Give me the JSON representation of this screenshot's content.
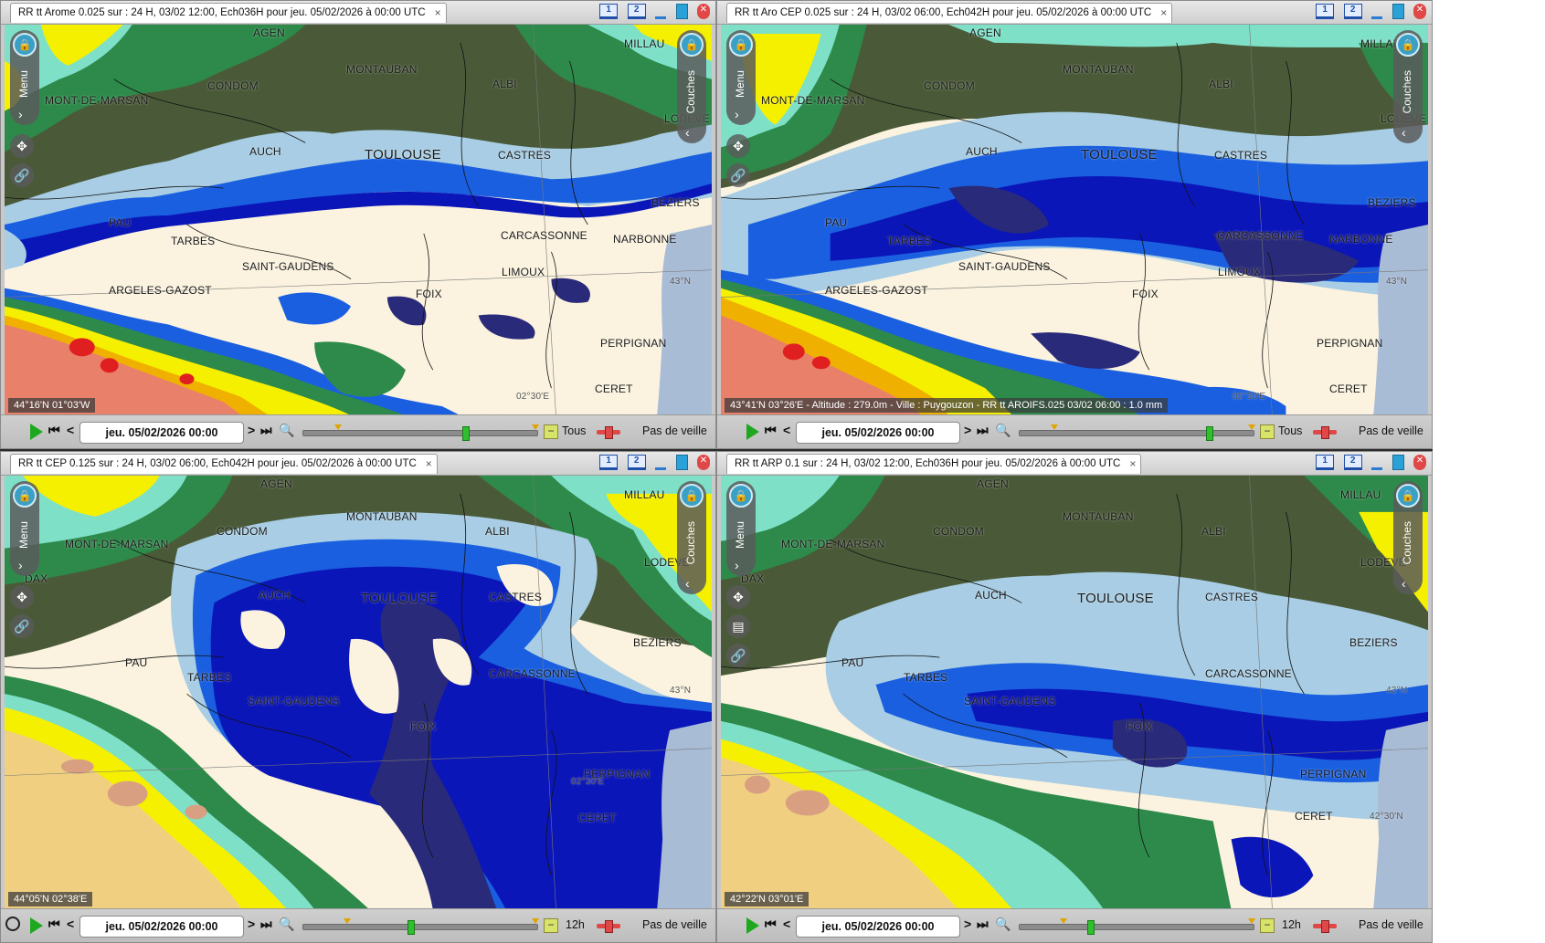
{
  "panels": [
    {
      "title": "RR tt Arome 0.025 sur : 24 H, 03/02 12:00, Ech036H pour jeu. 05/02/2026 à 00:00 UTC",
      "coord": "44°16'N 01°03'W",
      "date": "jeu. 05/02/2026 00:00",
      "step": "Tous",
      "veille": "Pas de veille",
      "menu": "Menu",
      "couches": "Couches",
      "screen1": "1",
      "screen2": "2",
      "close": "×"
    },
    {
      "title": "RR tt Aro CEP 0.025 sur : 24 H, 03/02 06:00, Ech042H pour jeu. 05/02/2026 à 00:00 UTC",
      "coord": "43°41'N 03°26'E - Altitude : 279.0m - Ville : Puygouzon - RR tt AROIFS.025 03/02 06:00 : 1.0 mm",
      "date": "jeu. 05/02/2026 00:00",
      "step": "Tous",
      "veille": "Pas de veille",
      "menu": "Menu",
      "couches": "Couches",
      "screen1": "1",
      "screen2": "2",
      "close": "×"
    },
    {
      "title": "RR tt CEP 0.125 sur : 24 H, 03/02 06:00, Ech042H pour jeu. 05/02/2026 à 00:00 UTC",
      "coord": "44°05'N 02°38'E",
      "date": "jeu. 05/02/2026 00:00",
      "step": "12h",
      "veille": "Pas de veille",
      "menu": "Menu",
      "couches": "Couches",
      "screen1": "1",
      "screen2": "2",
      "close": "×"
    },
    {
      "title": "RR tt ARP 0.1 sur : 24 H, 03/02 12:00, Ech036H pour jeu. 05/02/2026 à 00:00 UTC",
      "coord": "42°22'N 03°01'E",
      "date": "jeu. 05/02/2026 00:00",
      "step": "12h",
      "veille": "Pas de veille",
      "menu": "Menu",
      "couches": "Couches",
      "screen1": "1",
      "screen2": "2",
      "close": "×"
    }
  ],
  "cities": {
    "agen": "AGEN",
    "millau": "MILLAU",
    "montauban": "MONTAUBAN",
    "condom": "CONDOM",
    "albi": "ALBI",
    "mont_de_marsan": "MONT-DE-MARSAN",
    "lodeve": "LODEVE",
    "auch": "AUCH",
    "toulouse": "TOULOUSE",
    "castres": "CASTRES",
    "beziers": "BEZIERS",
    "pau": "PAU",
    "tarbes": "TARBES",
    "carcassonne": "CARCASSONNE",
    "narbonne": "NARBONNE",
    "saint_gaudens": "SAINT-GAUDENS",
    "limoux": "LIMOUX",
    "argeles": "ARGELES-GAZOST",
    "foix": "FOIX",
    "perpignan": "PERPIGNAN",
    "ceret": "CERET",
    "dax": "DAX"
  },
  "grid_labels": {
    "lat43": "43°N",
    "lat4230": "42°30'N",
    "lon0230": "02°30'E",
    "lon0300": "03°00'E"
  },
  "colors": {
    "background": "#fbf3df",
    "light_blue": "#a8cde4",
    "mid_blue": "#1a5fe0",
    "dark_blue": "#0b16b8",
    "navy": "#2a2a7a",
    "dark_green": "#4a5a38",
    "green": "#2d8a4a",
    "aqua": "#7fe0c8",
    "yellow": "#f5f000",
    "orange": "#f0b000",
    "red": "#e02020",
    "sea": "#a9bcd6"
  }
}
